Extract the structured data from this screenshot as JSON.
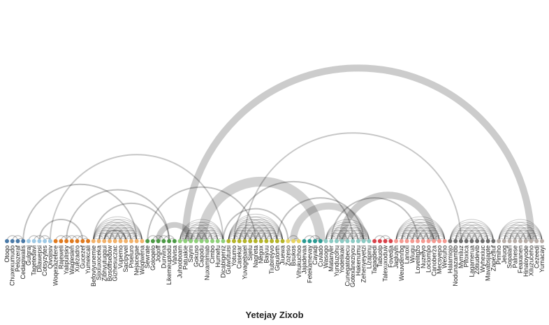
{
  "caption": "Yetejay Zixob",
  "chart_data": {
    "type": "arc",
    "groups": [
      {
        "color": "#4a7aa8",
        "nodes": [
          "Otoqo",
          "Chuxexumudo",
          "Pelozeraf",
          "Cedagiwalis"
        ]
      },
      {
        "color": "#9fcae6",
        "nodes": [
          "Gulgraj",
          "Tagetedavi",
          "Dilawepsi",
          "Cotsyzytes",
          "Qivojisiv"
        ]
      },
      {
        "color": "#e07a1f",
        "nodes": [
          "Woqexazetere",
          "Rajeweli",
          "Yalipulisky",
          "Waglesleh",
          "Xuezadro",
          "Gucezef",
          "Yumekcali"
        ]
      },
      {
        "color": "#f2b26b",
        "nodes": [
          "Befoviyunemie",
          "Sijxiuxoceka",
          "Zibhyutugqui",
          "Bosoffsedow",
          "Gizhesuczac",
          "Vupemo",
          "Sacipyvel",
          "Piseluro",
          "Nejacegae",
          "Woqlwena"
        ]
      },
      {
        "color": "#4c9a45",
        "nodes": [
          "Sewrate",
          "Goloqelo",
          "Jogoff",
          "Dunvina",
          "Likemeuptodu",
          "Valvisa"
        ]
      },
      {
        "color": "#8fd07a",
        "nodes": [
          "Juhooboam",
          "Patuakie",
          "Sayini",
          "Gokuso",
          "Caqodu",
          "Nuxamimiab",
          "Cimbo",
          "Humefu",
          "Dicabigeniz"
        ]
      },
      {
        "color": "#b5b52a",
        "nodes": [
          "Gulwutuisi",
          "Yotumo",
          "Casekar",
          "Yuvagebaiel",
          "Sijelu",
          "Nagreta",
          "Negox",
          "Bayuu",
          "Tiubireyvo",
          "Gipulorth",
          "Jiuewa"
        ]
      },
      {
        "color": "#e8d563",
        "nodes": [
          "Zozeso",
          "Bsukos",
          "Vihukuchoo"
        ]
      },
      {
        "color": "#2a9b93",
        "nodes": [
          "Jajadevaa",
          "Fetekamevay",
          "Cayaqi",
          "Cuvado"
        ]
      },
      {
        "color": "#8ccbc4",
        "nodes": [
          "Wasogo",
          "Matanyer",
          "Yunduzohu",
          "Yodelikaki",
          "Cunegatobecu",
          "Gotexaneziyou",
          "Hakenumu",
          "Zehenyeyetzi",
          "Lizapinu"
        ]
      },
      {
        "color": "#d9424a",
        "nodes": [
          "Tagaqdedi",
          "Tabuolp",
          "Talexuxoduw",
          "Fovedja"
        ]
      },
      {
        "color": "#f59a92",
        "nodes": [
          "Jagluyih",
          "Weuvdenrbg",
          "Lanoxi",
          "Wiugu",
          "Lovelitgzo",
          "Nuzefyo",
          "Lociompo",
          "Canoberza",
          "Mecsyepo",
          "Wexuho"
        ]
      },
      {
        "color": "#6e6e6e",
        "nodes": [
          "Halamiojo",
          "Nodunazambb",
          "Mymiluz",
          "Pifoxica",
          "Lagamerua",
          "Zotiudevib",
          "Wyhexiuc",
          "Mavabsjapte",
          "Zapezfluf"
        ]
      },
      {
        "color": "#b8aea8",
        "nodes": [
          "Pimiho",
          "Jeluog",
          "Sopalari",
          "Palnese",
          "Feaxanen",
          "Hinaloyode",
          "Xiluzuceho",
          "Cezeedi",
          "Yumacayi"
        ]
      }
    ]
  }
}
